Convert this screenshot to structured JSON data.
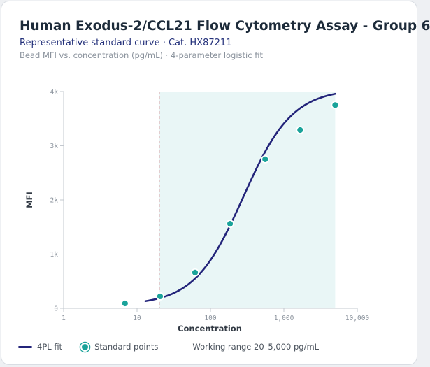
{
  "title": "Human Exodus-2/CCL21 Flow Cytometry Assay - Group 6",
  "subtitle": "Representative standard curve · Cat. HX87211",
  "note": "Bead MFI vs. concentration (pg/mL) · 4-parameter logistic fit",
  "colors": {
    "fit": "#23247a",
    "points": "#1aa39a",
    "range_line": "#c9303a",
    "range_fill": "#e9f6f6"
  },
  "chart_data": {
    "type": "scatter",
    "xlabel": "Concentration",
    "ylabel": "MFI",
    "xscale": "log",
    "xlim": [
      1,
      10000
    ],
    "ylim": [
      0,
      4000
    ],
    "x_ticks": [
      1,
      10,
      100,
      1000,
      10000
    ],
    "x_tick_labels": [
      "1",
      "10",
      "100",
      "1,000",
      "10,000"
    ],
    "y_ticks": [
      0,
      1000,
      2000,
      3000,
      4000
    ],
    "y_tick_labels": [
      "0",
      "1k",
      "2k",
      "3k",
      "4k"
    ],
    "series": [
      {
        "name": "Standard points",
        "x": [
          6.86,
          20.6,
          61.7,
          185,
          556,
          1667,
          5000
        ],
        "y": [
          90,
          220,
          660,
          1560,
          2750,
          3290,
          3750
        ]
      }
    ],
    "fit": {
      "name": "4PL fit",
      "bottom": 60,
      "top": 4050,
      "ec50": 280,
      "hill": 1.3,
      "x_range": [
        13,
        5000
      ]
    },
    "working_range": {
      "label": "Working range 20–5,000 pg/mL",
      "x": [
        20,
        5000
      ]
    },
    "grid": false,
    "legend_position": "bottom-left"
  },
  "legend": {
    "fit": "4PL fit",
    "points": "Standard points",
    "range": "Working range 20–5,000 pg/mL"
  }
}
